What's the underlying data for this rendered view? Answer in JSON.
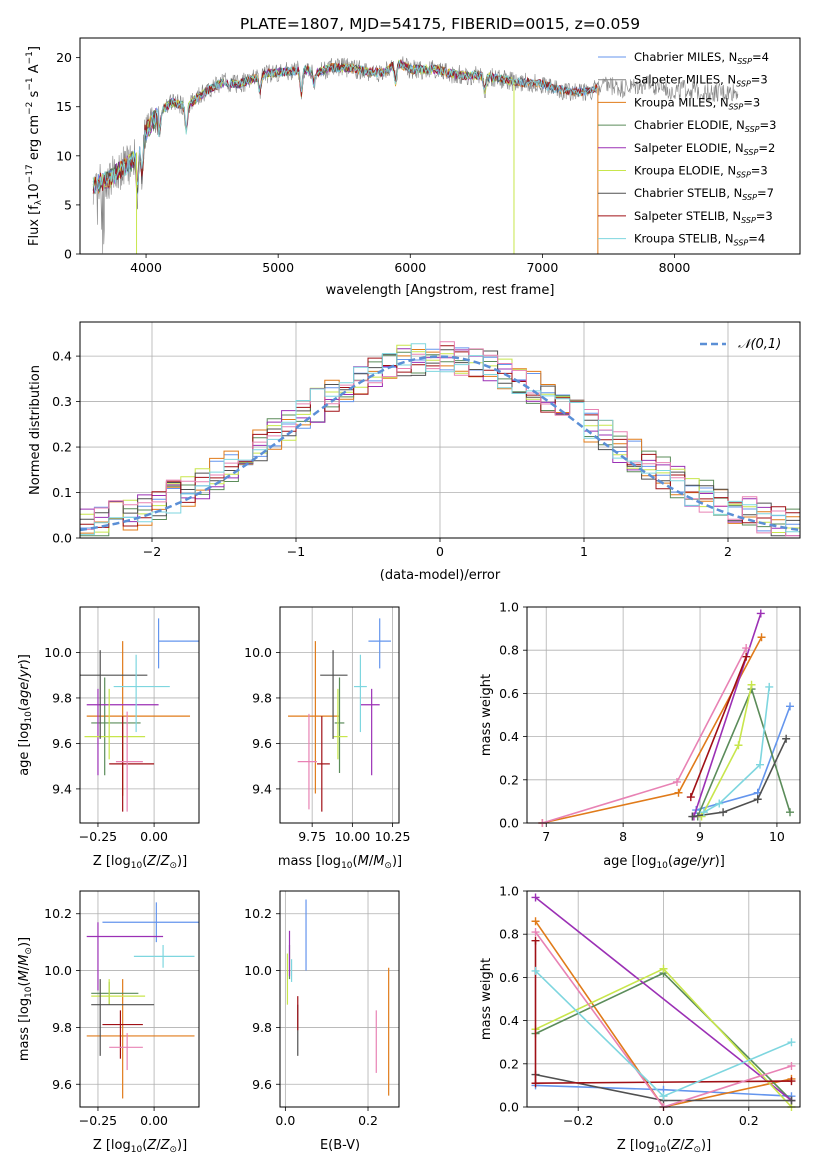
{
  "figure": {
    "title": "PLATE=1807, MJD=54175, FIBERID=0015, z=0.059"
  },
  "colors": {
    "blue": "#6495ED",
    "orange": "#E07B1A",
    "green": "#5B8C5A",
    "purple": "#9B30B5",
    "yellowgreen": "#C8E64C",
    "darkgray": "#505050",
    "darkred": "#A01016",
    "pink": "#E882B4",
    "cyan": "#7ED6DF",
    "gray": "#808080"
  },
  "chart_data": [
    {
      "id": "spectrum",
      "type": "line",
      "xlabel": "wavelength [Angstrom, rest frame]",
      "ylabel": "Flux [f_λ10^-17 erg cm^-2 s^-1 A^-1]",
      "xlim": [
        3500,
        8950
      ],
      "ylim": [
        0,
        22
      ],
      "xticks": [
        4000,
        5000,
        6000,
        7000,
        8000
      ],
      "yticks": [
        0,
        5,
        10,
        15,
        20
      ],
      "grid": false,
      "legend_position": "top-right",
      "data_continuum": {
        "x": [
          3600,
          3700,
          3800,
          3900,
          4000,
          4100,
          4200,
          4300,
          4400,
          4500,
          4600,
          4700,
          4800,
          4900,
          5000,
          5100,
          5200,
          5300,
          5400,
          5500,
          5600,
          5700,
          5800,
          5900,
          6000,
          6100,
          6200,
          6300,
          6400,
          6500,
          6600,
          6700,
          6800,
          6900,
          7000,
          7100,
          7200,
          7300,
          7400,
          7500,
          7600,
          7700,
          7800,
          7900,
          8000,
          8100,
          8200,
          8300,
          8400,
          8500
        ],
        "y": [
          7,
          7.5,
          8.5,
          9.5,
          12.5,
          14.5,
          15.5,
          15,
          16,
          17,
          17.5,
          17.3,
          17.8,
          18.3,
          18.5,
          18.6,
          18.8,
          18.5,
          19,
          19,
          18.8,
          18.5,
          18.5,
          19.5,
          18.8,
          18.8,
          18.8,
          18.4,
          18.2,
          18.2,
          18,
          17.8,
          17.5,
          17.5,
          17.3,
          16.8,
          16.6,
          16.5,
          16.8,
          17.2,
          16.8,
          17,
          17.2,
          17,
          16.6,
          16.8,
          16.5,
          16.4,
          16.4,
          16.6
        ]
      },
      "series": [
        {
          "name": "Chabrier MILES, N_SSP=4",
          "color": "#6495ED",
          "xmax": 7420
        },
        {
          "name": "Salpeter MILES, N_SSP=3",
          "color": "#808080",
          "xmax": 8480
        },
        {
          "name": "Kroupa MILES, N_SSP=3",
          "color": "#E07B1A",
          "xmax": 7420
        },
        {
          "name": "Chabrier ELODIE, N_SSP=3",
          "color": "#5B8C5A",
          "xmax": 6780
        },
        {
          "name": "Salpeter ELODIE, N_SSP=2",
          "color": "#9B30B5",
          "xmax": 6780
        },
        {
          "name": "Kroupa ELODIE, N_SSP=3",
          "color": "#C8E64C",
          "xmax": 6780
        },
        {
          "name": "Chabrier STELIB, N_SSP=7",
          "color": "#505050",
          "xmax": 7420
        },
        {
          "name": "Salpeter STELIB, N_SSP=3",
          "color": "#A01016",
          "xmax": 7420
        },
        {
          "name": "Kroupa STELIB, N_SSP=4",
          "color": "#7ED6DF",
          "xmax": 7420
        }
      ]
    },
    {
      "id": "residuals",
      "type": "line",
      "xlabel": "(data-model)/error",
      "ylabel": "Normed distribution",
      "xlim": [
        -2.5,
        2.5
      ],
      "ylim": [
        0,
        0.475
      ],
      "xticks": [
        -2,
        -1,
        0,
        1,
        2
      ],
      "yticks": [
        0.0,
        0.1,
        0.2,
        0.3,
        0.4
      ],
      "grid": true,
      "legend_position": "top-right",
      "gaussian": {
        "name": "𝒩(0,1)",
        "color": "#5B8FD6",
        "mean": 0,
        "sigma": 1
      },
      "bin_width": 0.1,
      "series": [
        {
          "color": "#6495ED",
          "seed": 1
        },
        {
          "color": "#E07B1A",
          "seed": 2
        },
        {
          "color": "#5B8C5A",
          "seed": 3
        },
        {
          "color": "#9B30B5",
          "seed": 4
        },
        {
          "color": "#C8E64C",
          "seed": 5
        },
        {
          "color": "#505050",
          "seed": 6
        },
        {
          "color": "#A01016",
          "seed": 7
        },
        {
          "color": "#E882B4",
          "seed": 8
        },
        {
          "color": "#7ED6DF",
          "seed": 9
        }
      ]
    },
    {
      "id": "age_vs_Z",
      "type": "scatter",
      "xlabel": "Z [log10(Z/Z⊙)]",
      "ylabel": "age [log10(age/yr)]",
      "xlim": [
        -0.33,
        0.2
      ],
      "ylim": [
        9.25,
        10.2
      ],
      "xticks": [
        -0.25,
        0.0
      ],
      "xticklabels": [
        "−0.25",
        "0.00"
      ],
      "yticks": [
        9.4,
        9.6,
        9.8,
        10.0
      ],
      "grid": true,
      "points": [
        {
          "color": "#6495ED",
          "x": 0.02,
          "y": 10.05,
          "xerr": [
            0.0,
            0.2
          ],
          "yerr": [
            0.12,
            0.1
          ]
        },
        {
          "color": "#E07B1A",
          "x": -0.14,
          "y": 9.72,
          "xerr": [
            0.16,
            0.3
          ],
          "yerr": [
            0.35,
            0.33
          ]
        },
        {
          "color": "#5B8C5A",
          "x": -0.22,
          "y": 9.69,
          "xerr": [
            0.06,
            0.16
          ],
          "yerr": [
            0.23,
            0.2
          ]
        },
        {
          "color": "#9B30B5",
          "x": -0.25,
          "y": 9.77,
          "xerr": [
            0.05,
            0.27
          ],
          "yerr": [
            0.31,
            0.07
          ]
        },
        {
          "color": "#C8E64C",
          "x": -0.2,
          "y": 9.63,
          "xerr": [
            0.11,
            0.16
          ],
          "yerr": [
            0.1,
            0.21
          ]
        },
        {
          "color": "#505050",
          "x": -0.24,
          "y": 9.9,
          "xerr": [
            0.09,
            0.21
          ],
          "yerr": [
            0.28,
            0.11
          ]
        },
        {
          "color": "#A01016",
          "x": -0.14,
          "y": 9.51,
          "xerr": [
            0.06,
            0.14
          ],
          "yerr": [
            0.21,
            0.21
          ]
        },
        {
          "color": "#E882B4",
          "x": -0.12,
          "y": 9.52,
          "xerr": [
            0.05,
            0.07
          ],
          "yerr": [
            0.22,
            0.22
          ]
        },
        {
          "color": "#7ED6DF",
          "x": -0.08,
          "y": 9.85,
          "xerr": [
            0.1,
            0.15
          ],
          "yerr": [
            0.2,
            0.14
          ]
        }
      ]
    },
    {
      "id": "age_vs_mass",
      "type": "scatter",
      "xlabel": "mass [log10(M/M⊙)]",
      "ylabel": "",
      "xlim": [
        9.55,
        10.29
      ],
      "ylim": [
        9.25,
        10.2
      ],
      "xticks": [
        9.75,
        10.0,
        10.25
      ],
      "xticklabels": [
        "9.75",
        "10.00",
        "10.25"
      ],
      "yticks": [
        9.4,
        9.6,
        9.8,
        10.0
      ],
      "grid": true,
      "points": [
        {
          "color": "#6495ED",
          "x": 10.17,
          "y": 10.05,
          "xerr": [
            0.07,
            0.07
          ],
          "yerr": [
            0.12,
            0.1
          ]
        },
        {
          "color": "#E07B1A",
          "x": 9.77,
          "y": 9.72,
          "xerr": [
            0.17,
            0.15
          ],
          "yerr": [
            0.34,
            0.33
          ]
        },
        {
          "color": "#5B8C5A",
          "x": 9.92,
          "y": 9.69,
          "xerr": [
            0.03,
            0.03
          ],
          "yerr": [
            0.22,
            0.2
          ]
        },
        {
          "color": "#9B30B5",
          "x": 10.12,
          "y": 9.77,
          "xerr": [
            0.07,
            0.05
          ],
          "yerr": [
            0.31,
            0.07
          ]
        },
        {
          "color": "#C8E64C",
          "x": 9.91,
          "y": 9.63,
          "xerr": [
            0.03,
            0.06
          ],
          "yerr": [
            0.1,
            0.21
          ]
        },
        {
          "color": "#505050",
          "x": 9.88,
          "y": 9.9,
          "xerr": [
            0.08,
            0.09
          ],
          "yerr": [
            0.28,
            0.11
          ]
        },
        {
          "color": "#A01016",
          "x": 9.81,
          "y": 9.51,
          "xerr": [
            0.03,
            0.05
          ],
          "yerr": [
            0.21,
            0.21
          ]
        },
        {
          "color": "#E882B4",
          "x": 9.73,
          "y": 9.52,
          "xerr": [
            0.07,
            0.05
          ],
          "yerr": [
            0.21,
            0.21
          ]
        },
        {
          "color": "#7ED6DF",
          "x": 10.05,
          "y": 9.85,
          "xerr": [
            0.04,
            0.04
          ],
          "yerr": [
            0.2,
            0.14
          ]
        }
      ]
    },
    {
      "id": "weight_vs_age",
      "type": "line",
      "xlabel": "age [log10(age/yr)]",
      "ylabel": "mass weight",
      "xlim": [
        6.75,
        10.3
      ],
      "ylim": [
        0,
        1.0
      ],
      "xticks": [
        7,
        8,
        9,
        10
      ],
      "yticks": [
        0.0,
        0.2,
        0.4,
        0.6,
        0.8,
        1.0
      ],
      "grid": true,
      "series": [
        {
          "color": "#6495ED",
          "x": [
            8.95,
            9.75,
            10.17
          ],
          "y": [
            0.06,
            0.14,
            0.54
          ]
        },
        {
          "color": "#E07B1A",
          "x": [
            6.95,
            8.72,
            9.8
          ],
          "y": [
            0.0,
            0.14,
            0.86
          ]
        },
        {
          "color": "#5B8C5A",
          "x": [
            8.97,
            9.67,
            10.17
          ],
          "y": [
            0.03,
            0.62,
            0.05
          ]
        },
        {
          "color": "#9B30B5",
          "x": [
            8.92,
            9.79
          ],
          "y": [
            0.03,
            0.97
          ]
        },
        {
          "color": "#C8E64C",
          "x": [
            9.02,
            9.5,
            9.67
          ],
          "y": [
            0.03,
            0.36,
            0.64
          ]
        },
        {
          "color": "#505050",
          "x": [
            8.9,
            9.3,
            9.75,
            10.12
          ],
          "y": [
            0.03,
            0.05,
            0.11,
            0.39
          ]
        },
        {
          "color": "#A01016",
          "x": [
            8.88,
            9.6
          ],
          "y": [
            0.12,
            0.77
          ]
        },
        {
          "color": "#E882B4",
          "x": [
            6.95,
            8.7,
            9.6
          ],
          "y": [
            0.0,
            0.19,
            0.81
          ]
        },
        {
          "color": "#7ED6DF",
          "x": [
            9.05,
            9.25,
            9.78,
            9.9
          ],
          "y": [
            0.05,
            0.09,
            0.27,
            0.63
          ]
        }
      ]
    },
    {
      "id": "mass_vs_Z",
      "type": "scatter",
      "xlabel": "Z [log10(Z/Z⊙)]",
      "ylabel": "mass [log10(M/M⊙)]",
      "xlim": [
        -0.33,
        0.2
      ],
      "ylim": [
        9.52,
        10.28
      ],
      "xticks": [
        -0.25,
        0.0
      ],
      "xticklabels": [
        "−0.25",
        "0.00"
      ],
      "yticks": [
        9.6,
        9.8,
        10.0,
        10.2
      ],
      "grid": true,
      "points": [
        {
          "color": "#6495ED",
          "x": 0.01,
          "y": 10.17,
          "xerr": [
            0.24,
            0.19
          ],
          "yerr": [
            0.07,
            0.07
          ]
        },
        {
          "color": "#E07B1A",
          "x": -0.14,
          "y": 9.77,
          "xerr": [
            0.16,
            0.32
          ],
          "yerr": [
            0.22,
            0.2
          ]
        },
        {
          "color": "#5B8C5A",
          "x": -0.2,
          "y": 9.92,
          "xerr": [
            0.08,
            0.13
          ],
          "yerr": [
            0.04,
            0.04
          ]
        },
        {
          "color": "#9B30B5",
          "x": -0.25,
          "y": 10.12,
          "xerr": [
            0.05,
            0.29
          ],
          "yerr": [
            0.19,
            0.05
          ]
        },
        {
          "color": "#C8E64C",
          "x": -0.2,
          "y": 9.91,
          "xerr": [
            0.08,
            0.16
          ],
          "yerr": [
            0.03,
            0.06
          ]
        },
        {
          "color": "#505050",
          "x": -0.24,
          "y": 9.88,
          "xerr": [
            0.04,
            0.24
          ],
          "yerr": [
            0.18,
            0.09
          ]
        },
        {
          "color": "#A01016",
          "x": -0.15,
          "y": 9.81,
          "xerr": [
            0.08,
            0.1
          ],
          "yerr": [
            0.12,
            0.05
          ]
        },
        {
          "color": "#E882B4",
          "x": -0.12,
          "y": 9.73,
          "xerr": [
            0.08,
            0.07
          ],
          "yerr": [
            0.08,
            0.05
          ]
        },
        {
          "color": "#7ED6DF",
          "x": 0.04,
          "y": 10.05,
          "xerr": [
            0.13,
            0.14
          ],
          "yerr": [
            0.04,
            0.04
          ]
        }
      ]
    },
    {
      "id": "mass_vs_ebv",
      "type": "scatter",
      "xlabel": "E(B-V)",
      "ylabel": "",
      "xlim": [
        -0.013,
        0.275
      ],
      "ylim": [
        9.52,
        10.28
      ],
      "xticks": [
        0.0,
        0.2
      ],
      "xticklabels": [
        "0.0",
        "0.2"
      ],
      "yticks": [
        9.6,
        9.8,
        10.0,
        10.2
      ],
      "grid": true,
      "points": [
        {
          "color": "#6495ED",
          "x": 0.05,
          "y": 10.13,
          "xerr": [
            0,
            0
          ],
          "yerr": [
            0.13,
            0.12
          ]
        },
        {
          "color": "#E07B1A",
          "x": 0.25,
          "y": 9.78,
          "xerr": [
            0,
            0
          ],
          "yerr": [
            0.22,
            0.23
          ]
        },
        {
          "color": "#5B8C5A",
          "x": 0.01,
          "y": 10.03,
          "xerr": [
            0,
            0
          ],
          "yerr": [
            0.06,
            0.06
          ]
        },
        {
          "color": "#9B30B5",
          "x": 0.01,
          "y": 10.06,
          "xerr": [
            0,
            0
          ],
          "yerr": [
            0.08,
            0.08
          ]
        },
        {
          "color": "#C8E64C",
          "x": 0.005,
          "y": 9.98,
          "xerr": [
            0,
            0
          ],
          "yerr": [
            0.1,
            0.08
          ]
        },
        {
          "color": "#505050",
          "x": 0.03,
          "y": 9.8,
          "xerr": [
            0,
            0
          ],
          "yerr": [
            0.1,
            0.08
          ]
        },
        {
          "color": "#A01016",
          "x": 0.03,
          "y": 9.84,
          "xerr": [
            0,
            0
          ],
          "yerr": [
            0.05,
            0.07
          ]
        },
        {
          "color": "#E882B4",
          "x": 0.22,
          "y": 9.75,
          "xerr": [
            0,
            0
          ],
          "yerr": [
            0.11,
            0.11
          ]
        },
        {
          "color": "#7ED6DF",
          "x": 0.015,
          "y": 10.0,
          "xerr": [
            0,
            0
          ],
          "yerr": [
            0.04,
            0.04
          ]
        }
      ]
    },
    {
      "id": "weight_vs_Z",
      "type": "line",
      "xlabel": "Z [log10(Z/Z⊙)]",
      "ylabel": "mass weight",
      "xlim": [
        -0.32,
        0.32
      ],
      "ylim": [
        0,
        1.0
      ],
      "xticks": [
        -0.2,
        0.0,
        0.2
      ],
      "xticklabels": [
        "−0.2",
        "0.0",
        "0.2"
      ],
      "yticks": [
        0.0,
        0.2,
        0.4,
        0.6,
        0.8,
        1.0
      ],
      "grid": true,
      "series": [
        {
          "color": "#6495ED",
          "x": [
            -0.3,
            0.0,
            0.3
          ],
          "y": [
            0.1,
            0.08,
            0.05
          ]
        },
        {
          "color": "#E07B1A",
          "x": [
            -0.3,
            0.0,
            0.3
          ],
          "y": [
            0.86,
            0.0,
            0.13
          ]
        },
        {
          "color": "#5B8C5A",
          "x": [
            -0.3,
            0.0,
            0.3
          ],
          "y": [
            0.34,
            0.62,
            0.03
          ]
        },
        {
          "color": "#9B30B5",
          "x": [
            -0.3,
            0.3
          ],
          "y": [
            0.97,
            0.03
          ]
        },
        {
          "color": "#C8E64C",
          "x": [
            -0.3,
            0.0,
            0.3
          ],
          "y": [
            0.36,
            0.64,
            0.0
          ]
        },
        {
          "color": "#505050",
          "x": [
            -0.3,
            0.0,
            0.3
          ],
          "y": [
            0.15,
            0.03,
            0.03
          ]
        },
        {
          "color": "#A01016",
          "x": [
            -0.3,
            -0.3,
            0.3
          ],
          "y": [
            0.77,
            0.11,
            0.12
          ]
        },
        {
          "color": "#E882B4",
          "x": [
            -0.3,
            0.0,
            0.3
          ],
          "y": [
            0.81,
            0.0,
            0.19
          ]
        },
        {
          "color": "#7ED6DF",
          "x": [
            -0.3,
            0.0,
            0.3
          ],
          "y": [
            0.63,
            0.05,
            0.3
          ]
        }
      ]
    }
  ]
}
